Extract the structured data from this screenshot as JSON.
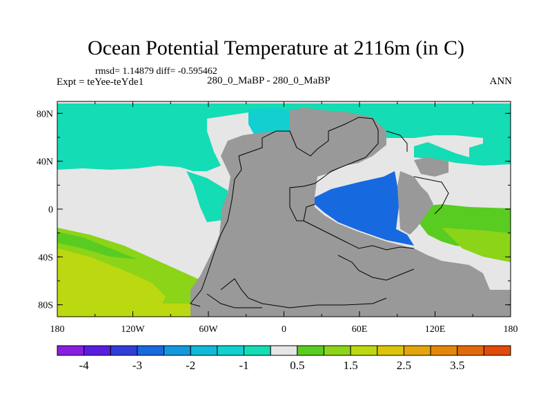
{
  "title": "Ocean Potential Temperature at 2116m (in C)",
  "stats": "rmsd= 1.14879 diff= -0.595462",
  "expt_label": "Expt = teYee-teYde1",
  "subtitle": "280_0_MaBP - 280_0_MaBP",
  "season": "ANN",
  "chart_data": {
    "type": "heatmap",
    "variable": "Ocean Potential Temperature difference",
    "units": "C",
    "depth": "2116m",
    "x_axis": {
      "range": [
        -180,
        180
      ],
      "ticks": [
        "180",
        "120W",
        "60W",
        "0",
        "60E",
        "120E",
        "180"
      ]
    },
    "y_axis": {
      "range": [
        -90,
        90
      ],
      "ticks": [
        "80N",
        "40N",
        "0",
        "40S",
        "80S"
      ]
    },
    "colorbar": {
      "levels": [
        -4.5,
        -4,
        -3.5,
        -3,
        -2.5,
        -2,
        -1.5,
        -1,
        -0.5,
        0.5,
        1,
        1.5,
        2,
        2.5,
        3,
        3.5,
        4,
        4.5
      ],
      "colors": [
        "#8a1ee0",
        "#5a1ce0",
        "#2f3ed8",
        "#1769e0",
        "#1398de",
        "#10b9d8",
        "#12cfd0",
        "#14dcb4",
        "#e6e6e6",
        "#58cc20",
        "#8cd418",
        "#bcd810",
        "#dcc40c",
        "#e4a40c",
        "#e4860a",
        "#e06a0a",
        "#e04a0a"
      ],
      "labels": [
        "-4",
        "-3",
        "-2",
        "-1",
        "0.5",
        "1.5",
        "2.5",
        "3.5"
      ]
    },
    "land_color": "#999999",
    "field_regions": [
      {
        "name": "north-polar",
        "value": 0,
        "color": "#e6e6e6"
      },
      {
        "name": "northern-band",
        "value": -0.8,
        "color": "#14dcb4"
      },
      {
        "name": "eastern-pacific-tropics",
        "value": 0,
        "color": "#e6e6e6"
      },
      {
        "name": "southern-pacific",
        "value": 1.2,
        "color": "#8cd418"
      },
      {
        "name": "tropical-tethys",
        "value": -3,
        "color": "#1769e0"
      },
      {
        "name": "northern-highlat-patch",
        "value": -1.2,
        "color": "#12cfd0"
      },
      {
        "name": "east-pacific-west",
        "value": 0.8,
        "color": "#58cc20"
      }
    ]
  }
}
